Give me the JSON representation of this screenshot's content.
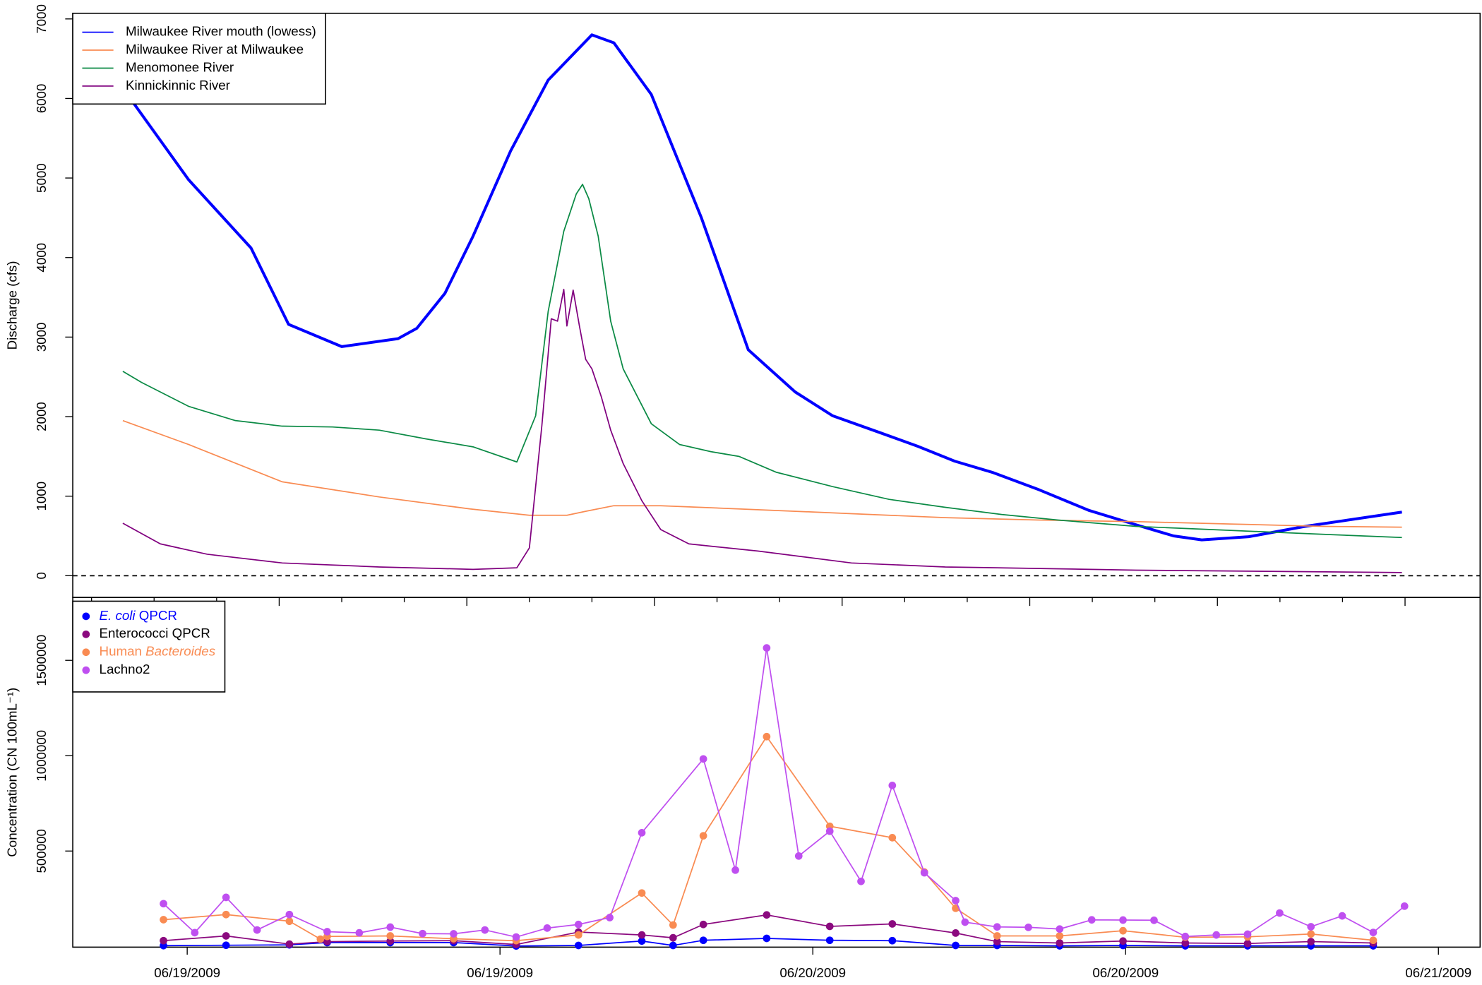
{
  "chart_data": [
    {
      "type": "line",
      "ylabel": "Discharge (cfs)",
      "legend": "top-left",
      "xlim": [
        5.4,
        50.4
      ],
      "ylim": [
        -273,
        7071
      ],
      "xticks": [
        6,
        8,
        10,
        12,
        14,
        16,
        18,
        20,
        22,
        24,
        26,
        28,
        30,
        32,
        34,
        36,
        38,
        40,
        42,
        44,
        46,
        48
      ],
      "yticks": [
        0,
        1000,
        2000,
        3000,
        4000,
        5000,
        6000,
        7000
      ],
      "hline": 0,
      "hline_dashed": true,
      "series": [
        {
          "name": "Milwaukee River mouth (lowess)",
          "color": "#0000ff",
          "linewidth": 3,
          "x": [
            7.0,
            9.1,
            11.1,
            12.3,
            14.0,
            15.8,
            16.4,
            17.3,
            18.2,
            19.4,
            20.6,
            22.0,
            22.7,
            23.9,
            25.5,
            27.0,
            28.5,
            29.7,
            31.2,
            32.4,
            33.6,
            34.8,
            36.3,
            37.9,
            39.4,
            40.6,
            41.5,
            43.0,
            44.8,
            47.9
          ],
          "values": [
            6130,
            4980,
            4120,
            3160,
            2880,
            2980,
            3110,
            3550,
            4270,
            5340,
            6230,
            6800,
            6700,
            6050,
            4500,
            2840,
            2310,
            2010,
            1800,
            1630,
            1440,
            1300,
            1080,
            820,
            640,
            500,
            450,
            490,
            620,
            800
          ]
        },
        {
          "name": "Milwaukee River at Milwaukee",
          "color": "#f98b52",
          "linewidth": 1.3,
          "x": [
            7.0,
            9.1,
            12.1,
            15.2,
            18.1,
            20.0,
            21.2,
            21.8,
            22.7,
            24.2,
            27.3,
            30.3,
            33.3,
            36.3,
            39.4,
            42.4,
            45.4,
            47.9
          ],
          "values": [
            1950,
            1650,
            1180,
            990,
            840,
            760,
            760,
            810,
            880,
            880,
            830,
            780,
            730,
            700,
            680,
            650,
            620,
            610
          ]
        },
        {
          "name": "Menomonee River",
          "color": "#0b8a45",
          "linewidth": 1.3,
          "x": [
            7.0,
            7.6,
            9.1,
            10.6,
            12.1,
            13.7,
            15.2,
            16.7,
            18.2,
            19.6,
            20.2,
            20.6,
            21.1,
            21.5,
            21.7,
            21.9,
            22.2,
            22.6,
            23.0,
            23.9,
            24.8,
            25.8,
            26.7,
            27.9,
            29.7,
            31.5,
            33.3,
            35.1,
            36.9,
            39.4,
            42.4,
            45.4,
            47.9
          ],
          "values": [
            2570,
            2430,
            2130,
            1950,
            1880,
            1870,
            1830,
            1720,
            1620,
            1430,
            2010,
            3320,
            4330,
            4800,
            4920,
            4740,
            4270,
            3200,
            2600,
            1910,
            1650,
            1560,
            1500,
            1300,
            1120,
            960,
            860,
            770,
            700,
            620,
            570,
            520,
            480
          ]
        },
        {
          "name": "Kinnickinnic River",
          "color": "#80007f",
          "linewidth": 1.3,
          "x": [
            7.0,
            8.2,
            9.7,
            12.1,
            15.2,
            18.2,
            19.6,
            20.0,
            20.4,
            20.7,
            20.9,
            21.1,
            21.2,
            21.4,
            21.6,
            21.8,
            22.0,
            22.3,
            22.6,
            23.0,
            23.6,
            24.2,
            25.1,
            27.3,
            30.3,
            33.3,
            39.4,
            47.9
          ],
          "values": [
            660,
            400,
            270,
            160,
            110,
            80,
            100,
            350,
            1890,
            3230,
            3200,
            3600,
            3140,
            3590,
            3140,
            2720,
            2600,
            2250,
            1830,
            1410,
            940,
            580,
            400,
            310,
            160,
            110,
            70,
            40
          ]
        }
      ]
    },
    {
      "type": "line",
      "markers": true,
      "ylabel": "Concentration (CN 100mL⁻¹)",
      "legend": "top-left",
      "xlim": [
        -4.39,
        49.6
      ],
      "ylim": [
        -4000,
        1830000
      ],
      "xticks": [
        {
          "value": 0,
          "label": "06/19/2009"
        },
        {
          "value": 12,
          "label": "06/19/2009"
        },
        {
          "value": 24,
          "label": "06/20/2009"
        },
        {
          "value": 36,
          "label": "06/20/2009"
        },
        {
          "value": 48,
          "label": "06/21/2009"
        }
      ],
      "yticks": [
        500000,
        1000000,
        1500000
      ],
      "series": [
        {
          "name": [
            {
              "text": "E. coli",
              "italic": true
            },
            {
              "text": " QPCR"
            }
          ],
          "color": "#0000ff",
          "linewidth": 1.3,
          "x": [
            -0.91,
            1.49,
            3.92,
            5.37,
            7.79,
            10.22,
            12.62,
            15.01,
            17.44,
            18.64,
            19.8,
            22.23,
            24.65,
            27.05,
            29.48,
            31.07,
            33.47,
            35.9,
            38.29,
            40.68,
            43.11,
            45.5
          ],
          "values": [
            4000,
            6000,
            8000,
            20000,
            20000,
            20000,
            2000,
            5000,
            28000,
            5000,
            32000,
            42000,
            32000,
            30000,
            5000,
            5000,
            3000,
            5000,
            3000,
            3000,
            3000,
            3000
          ]
        },
        {
          "name": "Enterococci QPCR",
          "color": "#8b0a7f",
          "linewidth": 1.3,
          "x": [
            -0.91,
            1.49,
            3.92,
            5.37,
            7.79,
            10.22,
            12.62,
            15.01,
            17.44,
            18.64,
            19.8,
            22.23,
            24.65,
            27.05,
            29.48,
            31.07,
            33.47,
            35.9,
            38.29,
            40.68,
            43.11,
            45.5
          ],
          "values": [
            30000,
            55000,
            12000,
            25000,
            28000,
            30000,
            10000,
            75000,
            60000,
            45000,
            115000,
            165000,
            105000,
            118000,
            70000,
            25000,
            18000,
            28000,
            18000,
            15000,
            25000,
            18000
          ]
        },
        {
          "name": [
            {
              "text": "Human "
            },
            {
              "text": "Bacteroides",
              "italic": true
            }
          ],
          "color": "#f98b52",
          "linewidth": 1.3,
          "x": [
            -0.91,
            1.49,
            3.92,
            5.11,
            5.37,
            7.79,
            10.22,
            12.62,
            15.01,
            17.44,
            18.64,
            19.8,
            22.23,
            24.65,
            27.05,
            28.28,
            29.48,
            31.07,
            33.47,
            35.9,
            38.29,
            40.68,
            43.11,
            45.5
          ],
          "values": [
            140000,
            167000,
            132000,
            38000,
            52000,
            55000,
            40000,
            30000,
            60000,
            280000,
            112000,
            580000,
            1100000,
            630000,
            570000,
            390000,
            200000,
            55000,
            55000,
            82000,
            48000,
            50000,
            65000,
            32000
          ]
        },
        {
          "name": "Lachno2",
          "color": "#bf4ff0",
          "linewidth": 1.3,
          "x": [
            -0.91,
            0.29,
            1.49,
            2.68,
            3.92,
            5.37,
            6.6,
            7.79,
            9.03,
            10.22,
            11.42,
            12.62,
            13.81,
            15.01,
            16.21,
            17.44,
            19.8,
            21.03,
            22.23,
            23.46,
            24.65,
            25.85,
            27.05,
            28.28,
            29.48,
            29.84,
            31.07,
            32.27,
            33.47,
            34.7,
            35.9,
            37.09,
            38.29,
            39.48,
            40.68,
            41.91,
            43.11,
            44.31,
            45.5,
            46.7
          ],
          "values": [
            224000,
            72000,
            257000,
            86000,
            167000,
            77000,
            71000,
            101000,
            67000,
            66000,
            86000,
            49000,
            96000,
            115000,
            151000,
            596000,
            983000,
            400000,
            1565000,
            474000,
            604000,
            341000,
            844000,
            386000,
            240000,
            127000,
            102000,
            100000,
            91000,
            139000,
            138000,
            137000,
            52000,
            60000,
            64000,
            175000,
            103000,
            160000,
            73000,
            211000
          ]
        }
      ]
    }
  ]
}
